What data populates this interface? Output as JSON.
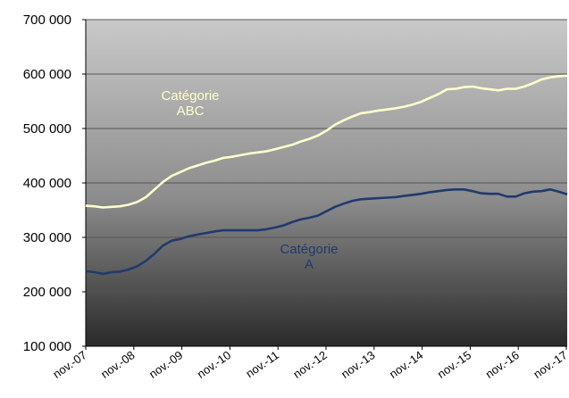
{
  "chart_data": {
    "type": "line",
    "title": "",
    "xlabel": "",
    "ylabel": "",
    "grid": true,
    "ylim": [
      100000,
      700000
    ],
    "y_ticks": [
      100000,
      200000,
      300000,
      400000,
      500000,
      600000,
      700000
    ],
    "y_tick_labels": [
      "100 000",
      "200 000",
      "300 000",
      "400 000",
      "500 000",
      "600 000",
      "700 000"
    ],
    "x_tick_labels": [
      "nov.-07",
      "nov.-08",
      "nov.-09",
      "nov.-10",
      "nov.-11",
      "nov.-12",
      "nov.-13",
      "nov.-14",
      "nov.-15",
      "nov.-16",
      "nov.-17"
    ],
    "x_unit": "months since nov.-07",
    "series": [
      {
        "name": "Catégorie ABC",
        "label_lines": [
          "Catégorie",
          "ABC"
        ],
        "color": "#FFFFCC",
        "points": [
          [
            0,
            358000
          ],
          [
            3,
            357000
          ],
          [
            6,
            355000
          ],
          [
            9,
            356000
          ],
          [
            12,
            357000
          ],
          [
            15,
            360000
          ],
          [
            18,
            365000
          ],
          [
            21,
            374000
          ],
          [
            24,
            388000
          ],
          [
            27,
            402000
          ],
          [
            30,
            413000
          ],
          [
            33,
            420000
          ],
          [
            36,
            427000
          ],
          [
            39,
            432000
          ],
          [
            42,
            437000
          ],
          [
            45,
            441000
          ],
          [
            48,
            446000
          ],
          [
            51,
            448000
          ],
          [
            54,
            451000
          ],
          [
            57,
            454000
          ],
          [
            60,
            456000
          ],
          [
            63,
            458000
          ],
          [
            66,
            462000
          ],
          [
            69,
            466000
          ],
          [
            72,
            470000
          ],
          [
            75,
            476000
          ],
          [
            78,
            481000
          ],
          [
            81,
            487000
          ],
          [
            84,
            496000
          ],
          [
            87,
            507000
          ],
          [
            90,
            515000
          ],
          [
            93,
            522000
          ],
          [
            96,
            528000
          ],
          [
            99,
            530000
          ],
          [
            102,
            533000
          ],
          [
            105,
            535000
          ],
          [
            108,
            537000
          ],
          [
            111,
            540000
          ],
          [
            114,
            544000
          ],
          [
            117,
            549000
          ],
          [
            120,
            556000
          ],
          [
            123,
            563000
          ],
          [
            126,
            572000
          ],
          [
            129,
            573000
          ],
          [
            132,
            576000
          ],
          [
            135,
            577000
          ],
          [
            138,
            574000
          ],
          [
            141,
            572000
          ],
          [
            144,
            570000
          ],
          [
            147,
            573000
          ],
          [
            150,
            573000
          ],
          [
            153,
            577000
          ],
          [
            156,
            583000
          ],
          [
            159,
            590000
          ],
          [
            162,
            594000
          ],
          [
            165,
            596000
          ],
          [
            168,
            597000
          ]
        ]
      },
      {
        "name": "Catégorie A",
        "label_lines": [
          "Catégorie",
          "A"
        ],
        "color": "#1F3A6E",
        "points": [
          [
            0,
            238000
          ],
          [
            3,
            236000
          ],
          [
            6,
            233000
          ],
          [
            9,
            236000
          ],
          [
            12,
            237000
          ],
          [
            15,
            241000
          ],
          [
            18,
            247000
          ],
          [
            21,
            257000
          ],
          [
            24,
            270000
          ],
          [
            27,
            285000
          ],
          [
            30,
            294000
          ],
          [
            33,
            297000
          ],
          [
            36,
            302000
          ],
          [
            39,
            305000
          ],
          [
            42,
            308000
          ],
          [
            45,
            311000
          ],
          [
            48,
            313000
          ],
          [
            51,
            313000
          ],
          [
            54,
            313000
          ],
          [
            57,
            313000
          ],
          [
            60,
            313000
          ],
          [
            63,
            315000
          ],
          [
            66,
            318000
          ],
          [
            69,
            322000
          ],
          [
            72,
            328000
          ],
          [
            75,
            333000
          ],
          [
            78,
            336000
          ],
          [
            81,
            340000
          ],
          [
            84,
            348000
          ],
          [
            87,
            356000
          ],
          [
            90,
            362000
          ],
          [
            93,
            367000
          ],
          [
            96,
            370000
          ],
          [
            99,
            371000
          ],
          [
            102,
            372000
          ],
          [
            105,
            373000
          ],
          [
            108,
            374000
          ],
          [
            111,
            376000
          ],
          [
            114,
            378000
          ],
          [
            117,
            380000
          ],
          [
            120,
            383000
          ],
          [
            123,
            385000
          ],
          [
            126,
            387000
          ],
          [
            129,
            388000
          ],
          [
            132,
            388000
          ],
          [
            135,
            385000
          ],
          [
            138,
            381000
          ],
          [
            141,
            380000
          ],
          [
            144,
            380000
          ],
          [
            147,
            375000
          ],
          [
            150,
            375000
          ],
          [
            153,
            381000
          ],
          [
            156,
            384000
          ],
          [
            159,
            385000
          ],
          [
            162,
            388000
          ],
          [
            165,
            384000
          ],
          [
            168,
            379000
          ]
        ]
      }
    ]
  }
}
